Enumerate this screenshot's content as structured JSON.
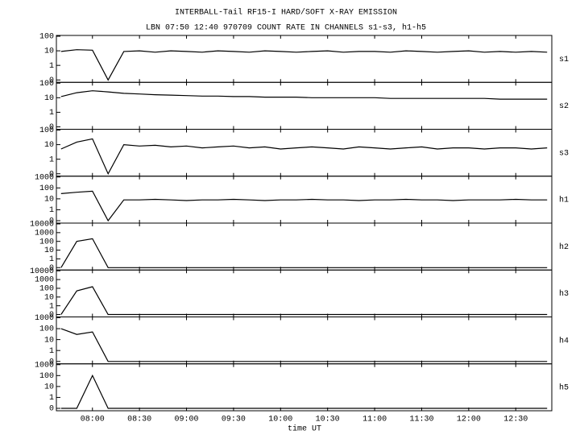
{
  "chart_data": {
    "type": "line",
    "title": "INTERBALL-Tail RF15-I HARD/SOFT X-RAY EMISSION",
    "subtitle": "LBN 07:50 12:40 970709  COUNT RATE IN CHANNELS s1-s3, h1-h5",
    "x_label": "time UT",
    "yscale": "log",
    "xlim": [
      "07:37",
      "12:53"
    ],
    "xticks": [
      "08:00",
      "08:30",
      "09:00",
      "09:30",
      "10:00",
      "10:30",
      "11:00",
      "11:30",
      "12:00",
      "12:30"
    ],
    "x": [
      "07:40",
      "07:50",
      "08:00",
      "08:10",
      "08:20",
      "08:30",
      "08:40",
      "08:50",
      "09:00",
      "09:10",
      "09:20",
      "09:30",
      "09:40",
      "09:50",
      "10:00",
      "10:10",
      "10:20",
      "10:30",
      "10:40",
      "10:50",
      "11:00",
      "11:10",
      "11:20",
      "11:30",
      "11:40",
      "11:50",
      "12:00",
      "12:10",
      "12:20",
      "12:30",
      "12:40",
      "12:50"
    ],
    "series": [
      {
        "name": "s1",
        "color": "#000000",
        "ylim": [
          0,
          100
        ],
        "yticks": [
          0,
          1,
          10,
          100
        ],
        "values": [
          9,
          12,
          11,
          0,
          9,
          10,
          8,
          10,
          9,
          8,
          10,
          9,
          8,
          10,
          9,
          8,
          9,
          10,
          8,
          9,
          9,
          8,
          10,
          9,
          8,
          9,
          10,
          8,
          9,
          8,
          9,
          8
        ]
      },
      {
        "name": "s2",
        "color": "#000000",
        "ylim": [
          0,
          100
        ],
        "yticks": [
          0,
          1,
          10,
          100
        ],
        "values": [
          12,
          22,
          30,
          25,
          20,
          18,
          16,
          15,
          14,
          13,
          13,
          12,
          12,
          11,
          11,
          11,
          10,
          10,
          10,
          10,
          10,
          9,
          9,
          9,
          9,
          9,
          9,
          9,
          8,
          8,
          8,
          8
        ]
      },
      {
        "name": "s3",
        "color": "#000000",
        "ylim": [
          0,
          100
        ],
        "yticks": [
          0,
          1,
          10,
          100
        ],
        "values": [
          5,
          15,
          25,
          0,
          10,
          8,
          9,
          7,
          8,
          6,
          7,
          8,
          6,
          7,
          5,
          6,
          7,
          6,
          5,
          7,
          6,
          5,
          6,
          7,
          5,
          6,
          6,
          5,
          6,
          6,
          5,
          6
        ]
      },
      {
        "name": "h1",
        "color": "#000000",
        "ylim": [
          0,
          1000
        ],
        "yticks": [
          0,
          1,
          10,
          100,
          1000
        ],
        "values": [
          30,
          40,
          50,
          0,
          8,
          8,
          9,
          8,
          7,
          8,
          8,
          9,
          8,
          7,
          8,
          8,
          9,
          8,
          8,
          7,
          8,
          8,
          9,
          8,
          8,
          7,
          8,
          8,
          8,
          9,
          8,
          8
        ]
      },
      {
        "name": "h2",
        "color": "#000000",
        "ylim": [
          0,
          10000
        ],
        "yticks": [
          0,
          1,
          10,
          100,
          1000,
          10000
        ],
        "values": [
          0,
          100,
          200,
          0,
          0,
          0,
          0,
          0,
          0,
          0,
          0,
          0,
          0,
          0,
          0,
          0,
          0,
          0,
          0,
          0,
          0,
          0,
          0,
          0,
          0,
          0,
          0,
          0,
          0,
          0,
          0,
          0
        ]
      },
      {
        "name": "h3",
        "color": "#000000",
        "ylim": [
          0,
          10000
        ],
        "yticks": [
          0,
          1,
          10,
          100,
          1000,
          10000
        ],
        "values": [
          0,
          50,
          150,
          0,
          0,
          0,
          0,
          0,
          0,
          0,
          0,
          0,
          0,
          0,
          0,
          0,
          0,
          0,
          0,
          0,
          0,
          0,
          0,
          0,
          0,
          0,
          0,
          0,
          0,
          0,
          0,
          0
        ]
      },
      {
        "name": "h4",
        "color": "#000000",
        "ylim": [
          0,
          1000
        ],
        "yticks": [
          0,
          1,
          10,
          100,
          1000
        ],
        "values": [
          100,
          30,
          50,
          0,
          0,
          0,
          0,
          0,
          0,
          0,
          0,
          0,
          0,
          0,
          0,
          0,
          0,
          0,
          0,
          0,
          0,
          0,
          0,
          0,
          0,
          0,
          0,
          0,
          0,
          0,
          0,
          0
        ]
      },
      {
        "name": "h5",
        "color": "#000000",
        "ylim": [
          0,
          1000
        ],
        "yticks": [
          0,
          1,
          10,
          100,
          1000
        ],
        "values": [
          0,
          0,
          100,
          0,
          0,
          0,
          0,
          0,
          0,
          0,
          0,
          0,
          0,
          0,
          0,
          0,
          0,
          0,
          0,
          0,
          0,
          0,
          0,
          0,
          0,
          0,
          0,
          0,
          0,
          0,
          0,
          0
        ]
      }
    ]
  }
}
